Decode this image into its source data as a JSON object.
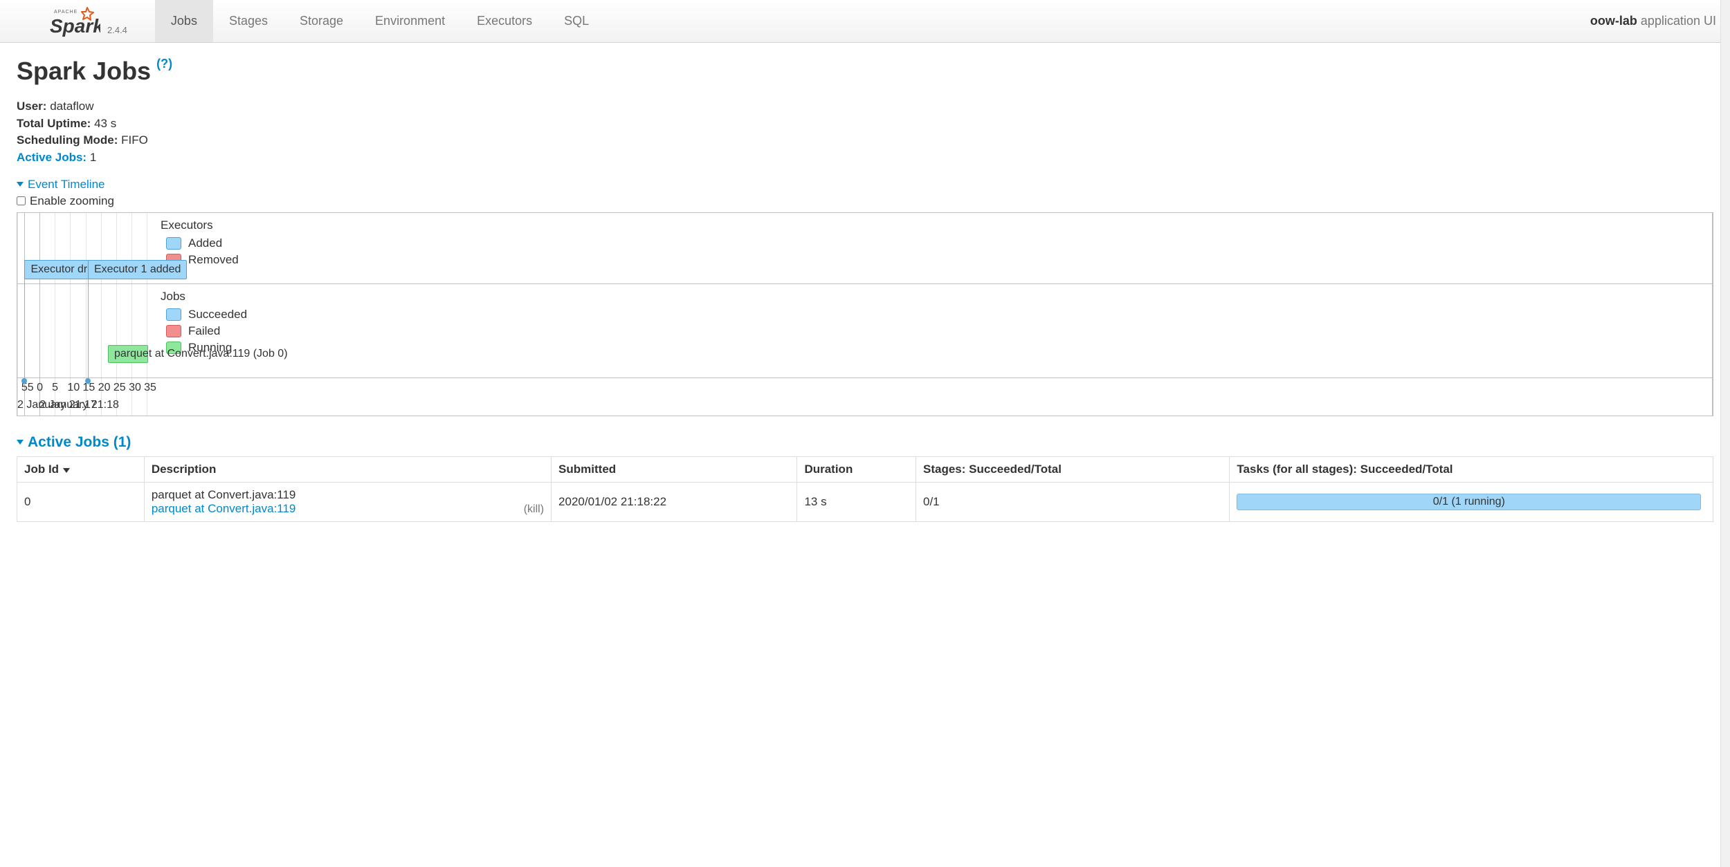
{
  "brand": {
    "version": "2.4.4"
  },
  "nav": {
    "tabs": [
      "Jobs",
      "Stages",
      "Storage",
      "Environment",
      "Executors",
      "SQL"
    ],
    "active": "Jobs",
    "right_strong": "oow-lab",
    "right_rest": " application UI"
  },
  "page": {
    "title": "Spark Jobs",
    "help": "(?)"
  },
  "summary": {
    "user_label": "User:",
    "user": "dataflow",
    "uptime_label": "Total Uptime:",
    "uptime": "43 s",
    "sched_label": "Scheduling Mode:",
    "sched": "FIFO",
    "active_label": "Active Jobs:",
    "active": "1"
  },
  "timeline_header": "Event Timeline",
  "zoom_label": "Enable zooming",
  "timeline": {
    "left": {
      "executors_title": "Executors",
      "added": "Added",
      "removed": "Removed",
      "jobs_title": "Jobs",
      "succeeded": "Succeeded",
      "failed": "Failed",
      "running": "Running"
    },
    "grid_positions_pct": [
      5.0,
      16.3,
      27.5,
      38.8,
      50.0,
      61.3,
      72.5,
      83.8,
      95.0
    ],
    "axis_ticks": [
      {
        "pos_pct": 5.0,
        "label": "55"
      },
      {
        "pos_pct": 16.3,
        "label": "0"
      },
      {
        "pos_pct": 27.5,
        "label": "5"
      },
      {
        "pos_pct": 38.8,
        "label": "10"
      },
      {
        "pos_pct": 50.0,
        "label": "15"
      },
      {
        "pos_pct": 61.3,
        "label": "20"
      },
      {
        "pos_pct": 72.5,
        "label": "25"
      },
      {
        "pos_pct": 83.8,
        "label": "30"
      },
      {
        "pos_pct": 95.0,
        "label": "35"
      }
    ],
    "axis_labels": [
      {
        "pos_pct": 0.0,
        "text": "2 January 21:17"
      },
      {
        "pos_pct": 16.3,
        "text": "2 January 21:18"
      }
    ],
    "exec_events": [
      {
        "label": "Executor driver added",
        "left_pct": 5.3,
        "line_pct": 5.3
      },
      {
        "label": "Executor 1 added",
        "left_pct": 51.75,
        "line_pct": 51.75
      }
    ],
    "job_events": [
      {
        "label": "parquet at Convert.java:119 (Job 0)",
        "left_pct": 66.5,
        "width_pct": 29.5
      }
    ],
    "colors": {
      "added_bg": "#a0d6f8",
      "added_border": "#4fa3d8",
      "removed_bg": "#f18e8e",
      "removed_border": "#d35a5a",
      "running_bg": "#8fe79e",
      "running_border": "#4fbf5f"
    }
  },
  "active_jobs_header": "Active Jobs (1)",
  "table": {
    "headers": [
      "Job Id",
      "Description",
      "Submitted",
      "Duration",
      "Stages: Succeeded/Total",
      "Tasks (for all stages): Succeeded/Total"
    ],
    "rows": [
      {
        "id": "0",
        "desc_text": "parquet at Convert.java:119",
        "desc_link": "parquet at Convert.java:119",
        "kill": "(kill)",
        "submitted": "2020/01/02 21:18:22",
        "duration": "13 s",
        "stages": "0/1",
        "tasks": "0/1 (1 running)"
      }
    ]
  }
}
